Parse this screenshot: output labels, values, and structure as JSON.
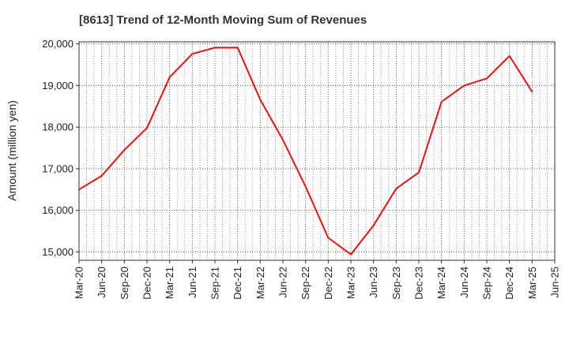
{
  "chart_data": {
    "type": "line",
    "title": "[8613]  Trend of 12-Month Moving Sum of Revenues",
    "xlabel": "",
    "ylabel": "Amount (million yen)",
    "x_tick_labels": [
      "Mar-20",
      "Jun-20",
      "Sep-20",
      "Dec-20",
      "Mar-21",
      "Jun-21",
      "Sep-21",
      "Dec-21",
      "Mar-22",
      "Jun-22",
      "Sep-22",
      "Dec-22",
      "Mar-23",
      "Jun-23",
      "Sep-23",
      "Dec-23",
      "Mar-24",
      "Jun-24",
      "Sep-24",
      "Dec-24",
      "Mar-25",
      "Jun-25"
    ],
    "y_tick_labels": [
      "20,000",
      "19,000",
      "18,000",
      "17,000",
      "16,000",
      "15,000"
    ],
    "y_ticks": [
      20000,
      19000,
      18000,
      17000,
      16000,
      15000
    ],
    "ylim": [
      14800,
      20050
    ],
    "grid": true,
    "line_color": "#ee1111",
    "series": [
      {
        "x": [
          "Mar-20",
          "Jun-20",
          "Sep-20",
          "Dec-20",
          "Mar-21",
          "Jun-21",
          "Sep-21",
          "Dec-21",
          "Mar-22",
          "Jun-22",
          "Sep-22",
          "Dec-22",
          "Mar-23",
          "Jun-23",
          "Sep-23",
          "Dec-23",
          "Mar-24",
          "Jun-24",
          "Sep-24",
          "Dec-24",
          "Mar-25"
        ],
        "values": [
          16500,
          16830,
          17450,
          17980,
          19200,
          19760,
          19910,
          19910,
          18660,
          17690,
          16570,
          15340,
          14940,
          15640,
          16520,
          16910,
          18610,
          19000,
          19170,
          19710,
          18850
        ]
      }
    ]
  }
}
